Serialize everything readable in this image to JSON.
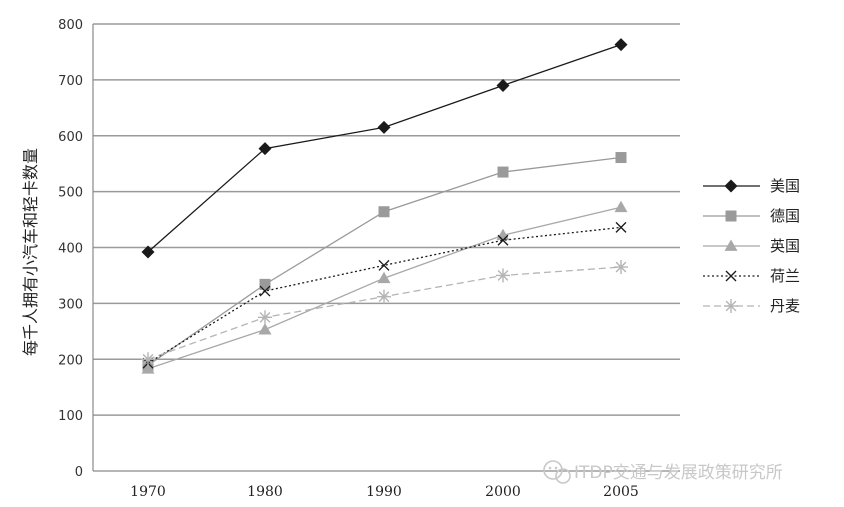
{
  "chart_data": {
    "type": "line",
    "ylabel": "每千人拥有小汽车和轻卡数量",
    "x": [
      "1970",
      "1980",
      "1990",
      "2000",
      "2005"
    ],
    "ylim": [
      0,
      800
    ],
    "yticks": [
      0,
      100,
      200,
      300,
      400,
      500,
      600,
      700,
      800
    ],
    "grid": true,
    "legend_position": "right",
    "series": [
      {
        "name": "美国",
        "values": [
          392,
          577,
          615,
          690,
          763
        ],
        "color": "#1a1a1a",
        "marker": "diamond",
        "dash": "solid"
      },
      {
        "name": "德国",
        "values": [
          189,
          334,
          464,
          535,
          561
        ],
        "color": "#9a9a9a",
        "marker": "square",
        "dash": "solid"
      },
      {
        "name": "英国",
        "values": [
          183,
          253,
          345,
          422,
          472
        ],
        "color": "#a8a8a8",
        "marker": "triangle",
        "dash": "solid"
      },
      {
        "name": "荷兰",
        "values": [
          193,
          322,
          368,
          413,
          436
        ],
        "color": "#1a1a1a",
        "marker": "x",
        "dash": "dotted"
      },
      {
        "name": "丹麦",
        "values": [
          200,
          275,
          312,
          350,
          365
        ],
        "color": "#b5b5b5",
        "marker": "asterisk",
        "dash": "dashed"
      }
    ]
  },
  "watermark": {
    "text": "ITDP交通与发展政策研究所",
    "icon": "wechat-icon"
  }
}
